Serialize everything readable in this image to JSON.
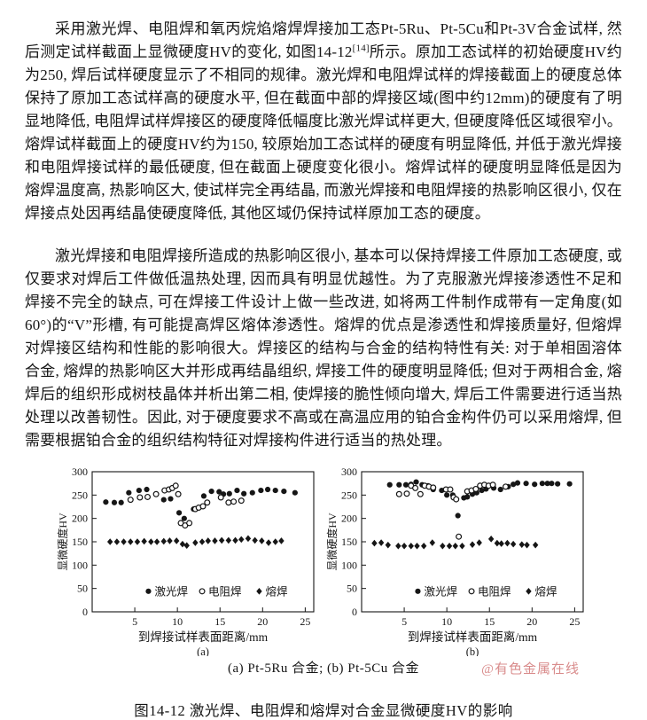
{
  "page": {
    "background": "#ffffff",
    "text_color": "#161616"
  },
  "document": {
    "paragraph1_part1": "采用激光焊、电阻焊和氧丙烷焰熔焊焊接加工态Pt-5Ru、Pt-5Cu和Pt-3V合金试样, 然后测定试样截面上显微硬度HV的变化, 如图14-12",
    "paragraph1_citation": "[14]",
    "paragraph1_part2": "所示。原加工态试样的初始硬度HV约为250, 焊后试样硬度显示了不相同的规律。激光焊和电阻焊试样的焊接截面上的硬度总体保持了原加工态试样高的硬度水平, 但在截面中部的焊接区域(图中约12mm)的硬度有了明显地降低, 电阻焊试样焊接区的硬度降低幅度比激光焊试样更大, 但硬度降低区域很窄小。熔焊试样截面上的硬度HV约为150, 较原始加工态试样的硬度有明显降低, 并低于激光焊接和电阻焊接试样的最低硬度, 但在截面上硬度变化很小。熔焊试样的硬度明显降低是因为熔焊温度高, 热影响区大, 使试样完全再结晶, 而激光焊接和电阻焊接的热影响区很小, 仅在焊接点处因再结晶使硬度降低, 其他区域仍保持试样原加工态的硬度。",
    "paragraph2": "激光焊接和电阻焊接所造成的热影响区很小, 基本可以保持焊接工件原加工态硬度, 或仅要求对焊后工件做低温热处理, 因而具有明显优越性。为了克服激光焊接渗透性不足和焊接不完全的缺点, 可在焊接工件设计上做一些改进, 如将两工件制作成带有一定角度(如60°)的“V”形槽, 有可能提高焊区熔体渗透性。熔焊的优点是渗透性和焊接质量好, 但熔焊对焊接区结构和性能的影响很大。焊接区的结构与合金的结构特性有关: 对于单相固溶体合金, 熔焊的热影响区大并形成再结晶组织, 焊接工件的硬度明显降低; 但对于两相合金, 熔焊后的组织形成树枝晶体并析出第二相, 使焊接的脆性倾向增大, 焊后工件需要进行适当热处理以改善韧性。因此, 对于硬度要求不高或在高温应用的铂合金构件仍可以采用熔焊, 但需要根据铂合金的组织结构特征对焊接构件进行适当的热处理。"
  },
  "figure": {
    "subcaption": "(a) Pt-5Ru 合金; (b) Pt-5Cu 合金",
    "watermark": "@有色金属在线",
    "watermark_color": "#d98c8c",
    "caption": "图14-12 激光焊、电阻焊和熔焊对合金显微硬度HV的影响"
  },
  "chart_data": [
    {
      "type": "scatter",
      "title": "(a) Pt-5Ru 合金",
      "sublabel": "(a)",
      "xlabel": "到焊接试样表面距离/mm",
      "ylabel": "显微硬度HV",
      "xlim": [
        0,
        26
      ],
      "ylim": [
        0,
        300
      ],
      "xticks": [
        5,
        10,
        15,
        20,
        25
      ],
      "yticks": [
        0,
        50,
        100,
        150,
        200,
        250,
        300
      ],
      "grid": false,
      "legend_position": "inside-bottom",
      "marker_color": "#161616",
      "series": [
        {
          "name": "激光焊",
          "id": "laser-weld",
          "marker": "filled-circle",
          "points": [
            [
              1.6,
              235
            ],
            [
              2.6,
              234
            ],
            [
              3.4,
              234
            ],
            [
              4.3,
              255
            ],
            [
              5.5,
              260
            ],
            [
              6.4,
              262
            ],
            [
              8.4,
              240
            ],
            [
              9.2,
              242
            ],
            [
              10.2,
              212
            ],
            [
              10.8,
              200
            ],
            [
              11.9,
              220
            ],
            [
              13.1,
              248
            ],
            [
              14.0,
              258
            ],
            [
              14.9,
              257
            ],
            [
              15.4,
              252
            ],
            [
              16.1,
              253
            ],
            [
              17.0,
              260
            ],
            [
              17.8,
              253
            ],
            [
              18.8,
              255
            ],
            [
              19.8,
              260
            ],
            [
              20.6,
              262
            ],
            [
              21.5,
              260
            ],
            [
              22.5,
              258
            ],
            [
              23.8,
              255
            ]
          ]
        },
        {
          "name": "电阻焊",
          "id": "resistance-weld",
          "marker": "open-circle",
          "points": [
            [
              4.5,
              240
            ],
            [
              5.6,
              245
            ],
            [
              6.5,
              246
            ],
            [
              7.5,
              252
            ],
            [
              8.5,
              260
            ],
            [
              9.0,
              262
            ],
            [
              9.4,
              265
            ],
            [
              9.8,
              270
            ],
            [
              10.1,
              252
            ],
            [
              10.4,
              190
            ],
            [
              10.9,
              185
            ],
            [
              11.4,
              190
            ],
            [
              12.1,
              220
            ],
            [
              12.5,
              223
            ],
            [
              13.0,
              226
            ],
            [
              13.5,
              234
            ],
            [
              15.1,
              245
            ],
            [
              16.0,
              234
            ],
            [
              16.6,
              236
            ],
            [
              17.5,
              238
            ]
          ]
        },
        {
          "name": "熔焊",
          "id": "fusion-weld",
          "marker": "filled-diamond",
          "points": [
            [
              2.1,
              150
            ],
            [
              2.9,
              150
            ],
            [
              3.7,
              150
            ],
            [
              4.5,
              150
            ],
            [
              5.3,
              150
            ],
            [
              6.1,
              151
            ],
            [
              6.9,
              150
            ],
            [
              7.6,
              150
            ],
            [
              8.4,
              151
            ],
            [
              9.1,
              152
            ],
            [
              9.9,
              152
            ],
            [
              10.6,
              145
            ],
            [
              11.1,
              142
            ],
            [
              12.1,
              148
            ],
            [
              12.9,
              150
            ],
            [
              13.6,
              152
            ],
            [
              14.4,
              152
            ],
            [
              15.2,
              153
            ],
            [
              16.0,
              153
            ],
            [
              16.8,
              153
            ],
            [
              17.5,
              155
            ],
            [
              18.3,
              157
            ],
            [
              19.1,
              153
            ],
            [
              19.9,
              152
            ],
            [
              20.7,
              148
            ],
            [
              21.5,
              150
            ],
            [
              22.2,
              152
            ]
          ]
        }
      ]
    },
    {
      "type": "scatter",
      "title": "(b) Pt-5Cu 合金",
      "sublabel": "(b)",
      "xlabel": "到焊接试样表面距离/mm",
      "ylabel": "显微硬度HV",
      "xlim": [
        0,
        26
      ],
      "ylim": [
        0,
        300
      ],
      "xticks": [
        5,
        10,
        15,
        20,
        25
      ],
      "yticks": [
        0,
        50,
        100,
        150,
        200,
        250,
        300
      ],
      "grid": false,
      "legend_position": "inside-bottom",
      "marker_color": "#161616",
      "series": [
        {
          "name": "激光焊",
          "id": "laser-weld",
          "marker": "filled-circle",
          "points": [
            [
              3.3,
              272
            ],
            [
              4.4,
              272
            ],
            [
              5.2,
              272
            ],
            [
              5.8,
              273
            ],
            [
              6.4,
              278
            ],
            [
              7.1,
              272
            ],
            [
              7.8,
              270
            ],
            [
              8.4,
              262
            ],
            [
              9.4,
              260
            ],
            [
              10.0,
              250
            ],
            [
              10.7,
              250
            ],
            [
              11.3,
              206
            ],
            [
              12.0,
              244
            ],
            [
              12.4,
              246
            ],
            [
              13.0,
              252
            ],
            [
              13.5,
              255
            ],
            [
              14.1,
              260
            ],
            [
              14.6,
              263
            ],
            [
              15.5,
              265
            ],
            [
              16.3,
              262
            ],
            [
              17.2,
              268
            ],
            [
              17.8,
              273
            ],
            [
              18.3,
              276
            ],
            [
              19.3,
              275
            ],
            [
              20.3,
              273
            ],
            [
              21.2,
              275
            ],
            [
              21.8,
              275
            ],
            [
              22.3,
              275
            ],
            [
              23.0,
              274
            ],
            [
              24.4,
              274
            ]
          ]
        },
        {
          "name": "电阻焊",
          "id": "resistance-weld",
          "marker": "open-circle",
          "points": [
            [
              4.4,
              252
            ],
            [
              5.3,
              253
            ],
            [
              5.8,
              270
            ],
            [
              6.3,
              265
            ],
            [
              6.9,
              252
            ],
            [
              7.4,
              270
            ],
            [
              7.9,
              268
            ],
            [
              8.4,
              266
            ],
            [
              9.9,
              262
            ],
            [
              10.4,
              262
            ],
            [
              10.8,
              245
            ],
            [
              11.1,
              241
            ],
            [
              11.4,
              161
            ],
            [
              12.4,
              258
            ],
            [
              12.9,
              260
            ],
            [
              13.4,
              263
            ],
            [
              13.9,
              270
            ],
            [
              14.4,
              272
            ],
            [
              14.9,
              270
            ],
            [
              15.4,
              272
            ],
            [
              16.9,
              268
            ]
          ]
        },
        {
          "name": "熔焊",
          "id": "fusion-weld",
          "marker": "filled-diamond",
          "points": [
            [
              1.5,
              147
            ],
            [
              2.3,
              148
            ],
            [
              3.1,
              143
            ],
            [
              4.3,
              141
            ],
            [
              5.0,
              141
            ],
            [
              5.8,
              141
            ],
            [
              6.5,
              141
            ],
            [
              7.3,
              141
            ],
            [
              8.3,
              148
            ],
            [
              9.5,
              141
            ],
            [
              10.3,
              141
            ],
            [
              11.0,
              141
            ],
            [
              11.8,
              141
            ],
            [
              13.0,
              144
            ],
            [
              13.8,
              148
            ],
            [
              15.2,
              156
            ],
            [
              15.9,
              147
            ],
            [
              16.4,
              146
            ],
            [
              17.1,
              147
            ],
            [
              17.8,
              145
            ],
            [
              18.8,
              144
            ],
            [
              19.4,
              143
            ],
            [
              20.4,
              143
            ]
          ]
        }
      ]
    }
  ]
}
